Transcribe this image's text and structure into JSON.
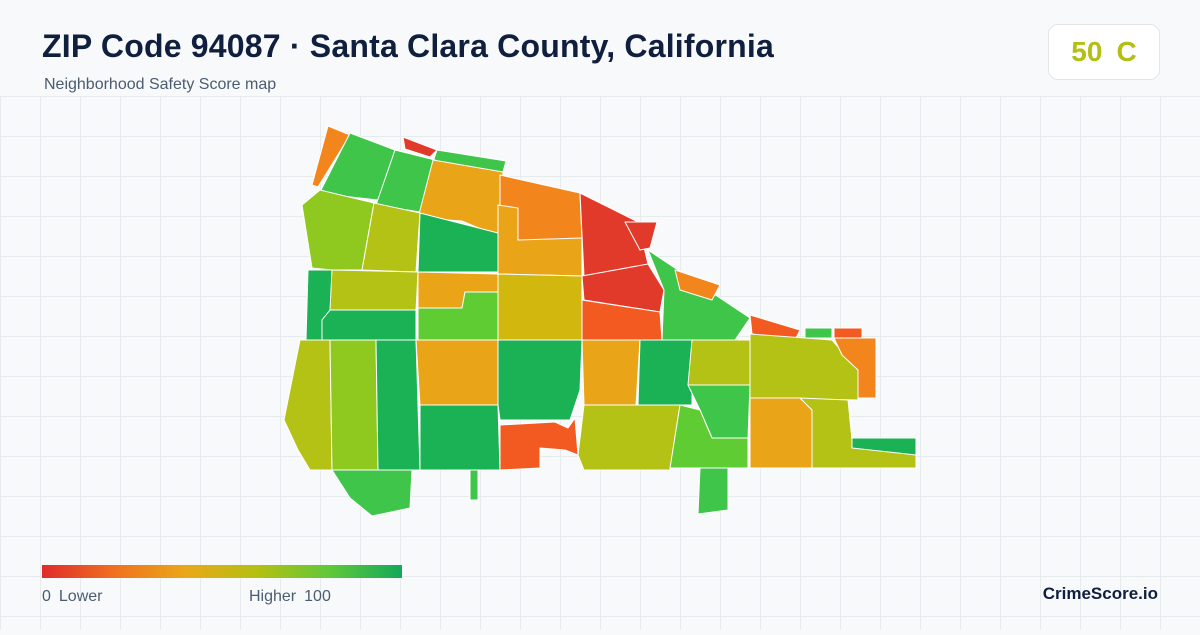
{
  "header": {
    "title": "ZIP Code 94087 · Santa Clara County, California",
    "subtitle": "Neighborhood Safety Score map"
  },
  "score": {
    "value": "50",
    "grade": "C",
    "color": "#b3c012"
  },
  "legend": {
    "min": "0",
    "min_label": "Lower",
    "max_label": "Higher",
    "max": "100",
    "colors": [
      "#e02b2b",
      "#f07020",
      "#e9a818",
      "#b3c012",
      "#5fc83a",
      "#14a85a"
    ]
  },
  "brand": "CrimeScore.io",
  "map_colors": {
    "red": "#e23a2a",
    "red_orange": "#f25a22",
    "orange": "#f2861c",
    "amber": "#eaa418",
    "gold": "#d2b80e",
    "olive": "#b3c214",
    "yellow_green": "#8fc81e",
    "light_green": "#5fcc34",
    "green": "#3ec54a",
    "dark_green": "#1bb255"
  }
}
